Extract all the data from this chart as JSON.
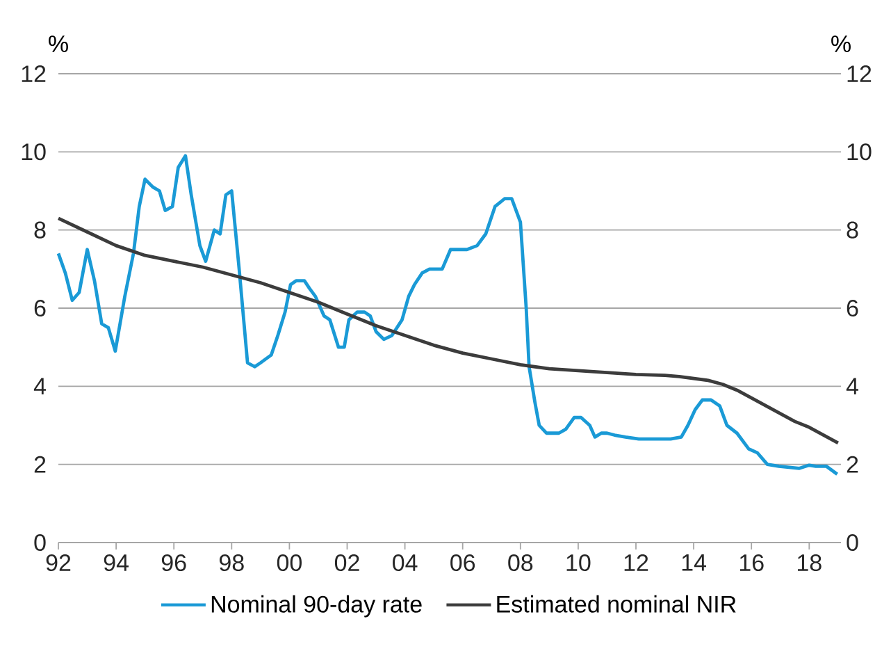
{
  "chart_data": {
    "type": "line",
    "ylabel": "%",
    "y2label": "%",
    "xlim": [
      1992,
      2019.1
    ],
    "ylim": [
      0,
      12
    ],
    "y2lim": [
      0,
      12
    ],
    "xticks": [
      {
        "value": 1992,
        "label": "92"
      },
      {
        "value": 1994,
        "label": "94"
      },
      {
        "value": 1996,
        "label": "96"
      },
      {
        "value": 1998,
        "label": "98"
      },
      {
        "value": 2000,
        "label": "00"
      },
      {
        "value": 2002,
        "label": "02"
      },
      {
        "value": 2004,
        "label": "04"
      },
      {
        "value": 2006,
        "label": "06"
      },
      {
        "value": 2008,
        "label": "08"
      },
      {
        "value": 2010,
        "label": "10"
      },
      {
        "value": 2012,
        "label": "12"
      },
      {
        "value": 2014,
        "label": "14"
      },
      {
        "value": 2016,
        "label": "16"
      },
      {
        "value": 2018,
        "label": "18"
      }
    ],
    "yticks": [
      0,
      2,
      4,
      6,
      8,
      10,
      12
    ],
    "y2ticks": [
      0,
      2,
      4,
      6,
      8,
      10,
      12
    ],
    "grid": "y",
    "legend": "bottom",
    "marker": "none",
    "line_style": "solid",
    "series": [
      {
        "name": "Nominal 90-day rate",
        "color": "#1a9ad6",
        "x": [
          1992.0,
          1992.24,
          1992.48,
          1992.72,
          1993.0,
          1993.25,
          1993.5,
          1993.73,
          1993.97,
          1994.3,
          1994.6,
          1994.8,
          1995.0,
          1995.27,
          1995.5,
          1995.7,
          1995.95,
          1996.15,
          1996.4,
          1996.6,
          1996.9,
          1997.1,
          1997.4,
          1997.6,
          1997.8,
          1998.0,
          1998.26,
          1998.55,
          1998.8,
          1999.0,
          1999.37,
          1999.6,
          1999.85,
          2000.04,
          2000.23,
          2000.52,
          2000.7,
          2000.9,
          2001.2,
          2001.4,
          2001.7,
          2001.9,
          2002.06,
          2002.35,
          2002.6,
          2002.8,
          2003.0,
          2003.27,
          2003.55,
          2003.9,
          2004.13,
          2004.33,
          2004.6,
          2004.85,
          2005.29,
          2005.58,
          2005.87,
          2006.15,
          2006.5,
          2006.8,
          2007.12,
          2007.45,
          2007.7,
          2008.0,
          2008.2,
          2008.3,
          2008.5,
          2008.65,
          2008.9,
          2009.1,
          2009.33,
          2009.57,
          2009.86,
          2010.1,
          2010.4,
          2010.58,
          2010.8,
          2011.0,
          2011.26,
          2011.64,
          2012.1,
          2012.6,
          2013.2,
          2013.57,
          2013.8,
          2014.05,
          2014.3,
          2014.6,
          2014.9,
          2015.15,
          2015.5,
          2015.9,
          2016.2,
          2016.55,
          2016.95,
          2017.66,
          2018.0,
          2018.23,
          2018.6,
          2018.97
        ],
        "values": [
          7.4,
          6.9,
          6.2,
          6.4,
          7.5,
          6.7,
          5.6,
          5.5,
          4.9,
          6.3,
          7.4,
          8.6,
          9.3,
          9.1,
          9.0,
          8.5,
          8.6,
          9.6,
          9.9,
          8.9,
          7.6,
          7.2,
          8.0,
          7.9,
          8.9,
          9.0,
          7.0,
          4.6,
          4.5,
          4.6,
          4.8,
          5.3,
          5.9,
          6.6,
          6.7,
          6.7,
          6.5,
          6.3,
          5.8,
          5.7,
          5.0,
          5.0,
          5.7,
          5.9,
          5.9,
          5.8,
          5.4,
          5.2,
          5.3,
          5.7,
          6.3,
          6.6,
          6.9,
          7.0,
          7.0,
          7.5,
          7.5,
          7.5,
          7.6,
          7.9,
          8.6,
          8.8,
          8.8,
          8.2,
          6.0,
          4.5,
          3.6,
          3.0,
          2.8,
          2.8,
          2.8,
          2.9,
          3.2,
          3.2,
          3.0,
          2.7,
          2.8,
          2.8,
          2.75,
          2.7,
          2.65,
          2.65,
          2.65,
          2.7,
          3.0,
          3.4,
          3.65,
          3.65,
          3.5,
          3.0,
          2.8,
          2.4,
          2.3,
          2.0,
          1.95,
          1.9,
          1.98,
          1.95,
          1.95,
          1.75
        ]
      },
      {
        "name": "Estimated nominal NIR",
        "color": "#3c3c3c",
        "x": [
          1992,
          1993,
          1994,
          1995,
          1996,
          1997,
          1998,
          1999,
          2000,
          2001,
          2002,
          2003,
          2004,
          2005,
          2006,
          2007,
          2008,
          2009,
          2010,
          2011,
          2012,
          2013,
          2013.5,
          2014.5,
          2015,
          2015.5,
          2016,
          2016.5,
          2017,
          2017.5,
          2018,
          2018.5,
          2019.0
        ],
        "values": [
          8.3,
          7.95,
          7.6,
          7.35,
          7.2,
          7.05,
          6.85,
          6.65,
          6.4,
          6.15,
          5.85,
          5.55,
          5.3,
          5.05,
          4.85,
          4.7,
          4.55,
          4.45,
          4.4,
          4.35,
          4.3,
          4.28,
          4.25,
          4.15,
          4.05,
          3.9,
          3.7,
          3.5,
          3.3,
          3.1,
          2.95,
          2.75,
          2.55
        ]
      }
    ]
  }
}
